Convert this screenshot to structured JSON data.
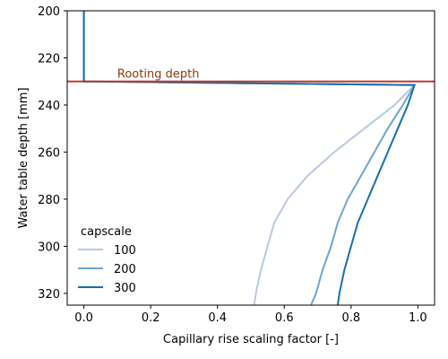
{
  "chart_data": {
    "type": "line",
    "xlabel": "Capillary rise scaling factor [-]",
    "ylabel": "Water table depth [mm]",
    "xlim": [
      -0.05,
      1.05
    ],
    "ylim": [
      325,
      200
    ],
    "y_axis_inverted": true,
    "xticks": [
      0.0,
      0.2,
      0.4,
      0.6,
      0.8,
      1.0
    ],
    "xtick_labels": [
      "0.0",
      "0.2",
      "0.4",
      "0.6",
      "0.8",
      "1.0"
    ],
    "yticks": [
      200,
      220,
      240,
      260,
      280,
      300,
      320
    ],
    "ytick_labels": [
      "200",
      "220",
      "240",
      "260",
      "280",
      "300",
      "320"
    ],
    "grid": false,
    "legend": {
      "title": "capscale",
      "placement": "lower-left"
    },
    "annotation": {
      "text": "Rooting depth",
      "y": 230,
      "color": "#8b3a0e"
    },
    "colors": {
      "axes": "#000000",
      "rooting_line": "#c0392b",
      "annotation_text": "#8b3a0e"
    },
    "series": [
      {
        "name": "100",
        "color": "#b8c8df",
        "points": [
          [
            0.0,
            200
          ],
          [
            0.0,
            230
          ],
          [
            0.99,
            231.5
          ],
          [
            0.93,
            240
          ],
          [
            0.84,
            250
          ],
          [
            0.75,
            260
          ],
          [
            0.67,
            270
          ],
          [
            0.61,
            280
          ],
          [
            0.57,
            290
          ],
          [
            0.55,
            300
          ],
          [
            0.53,
            310
          ],
          [
            0.515,
            320
          ],
          [
            0.51,
            325
          ]
        ]
      },
      {
        "name": "200",
        "color": "#6ea6cf",
        "points": [
          [
            0.0,
            200
          ],
          [
            0.0,
            230
          ],
          [
            0.99,
            231.5
          ],
          [
            0.955,
            240
          ],
          [
            0.91,
            250
          ],
          [
            0.87,
            260
          ],
          [
            0.83,
            270
          ],
          [
            0.79,
            280
          ],
          [
            0.76,
            290
          ],
          [
            0.74,
            300
          ],
          [
            0.715,
            310
          ],
          [
            0.695,
            320
          ],
          [
            0.68,
            325
          ]
        ]
      },
      {
        "name": "300",
        "color": "#1670ac",
        "points": [
          [
            0.0,
            200
          ],
          [
            0.0,
            230
          ],
          [
            0.99,
            231.5
          ],
          [
            0.97,
            240
          ],
          [
            0.94,
            250
          ],
          [
            0.91,
            260
          ],
          [
            0.88,
            270
          ],
          [
            0.85,
            280
          ],
          [
            0.82,
            290
          ],
          [
            0.8,
            300
          ],
          [
            0.78,
            310
          ],
          [
            0.765,
            320
          ],
          [
            0.76,
            325
          ]
        ]
      }
    ]
  }
}
